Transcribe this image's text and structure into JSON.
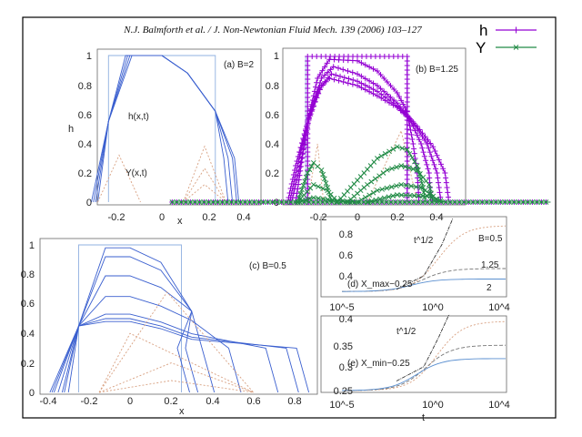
{
  "header": {
    "citation": "N.J. Balmforth et al. / J. Non-Newtonian Fluid Mech. 139 (2006) 103–127"
  },
  "legend": {
    "items": [
      {
        "label": "h",
        "color": "#9400d3",
        "marker": "+"
      },
      {
        "label": "Y",
        "color": "#228b46",
        "marker": "x"
      }
    ]
  },
  "figure": {
    "panel_a": {
      "label": "(a) B=2",
      "curve_h_label": "h(x,t)",
      "curve_y_label": "Y(x,t)",
      "ylabel": "h",
      "xlabel": "x",
      "yticks": [
        "1",
        "0.8",
        "0.6",
        "0.4",
        "0.2",
        "0"
      ],
      "xticks": [
        "-0.2",
        "0",
        "0.2",
        "0.4"
      ]
    },
    "panel_b": {
      "label": "(b) B=1.25",
      "yticks": [
        "1",
        "0.8",
        "0.6",
        "0.4",
        "0.2",
        "0"
      ],
      "xticks": [
        "-0.2",
        "0",
        "0.2",
        "0.4"
      ]
    },
    "panel_c": {
      "label": "(c) B=0.5",
      "xlabel": "x",
      "yticks": [
        "1",
        "0.8",
        "0.6",
        "0.4",
        "0.2",
        "0"
      ],
      "xticks": [
        "-0.4",
        "-0.2",
        "0",
        "0.2",
        "0.4",
        "0.6",
        "0.8"
      ]
    },
    "panel_d": {
      "label": "(d) X_max−0.25",
      "asymptote": "t^1/2",
      "series_labels": [
        "B=0.5",
        "1.25",
        "2"
      ],
      "yticks": [
        "0.8",
        "0.6",
        "0.4"
      ],
      "xticks": [
        "10^-5",
        "10^0",
        "10^4"
      ]
    },
    "panel_e": {
      "label": "(e) X_min−0.25",
      "asymptote": "t^1/2",
      "xlabel": "t",
      "yticks": [
        "0.4",
        "0.35",
        "0.3",
        "0.25"
      ],
      "xticks": [
        "10^-5",
        "10^0",
        "10^4"
      ]
    }
  },
  "chart_data": {
    "type": "line",
    "xlim": [
      -0.93,
      0.97
    ],
    "ylim": [
      0,
      1
    ],
    "legend_position": "top-right",
    "series": [
      {
        "name": "h",
        "color": "#9400d3",
        "marker": "+",
        "curves": [
          [
            [
              -0.25,
              0
            ],
            [
              -0.25,
              1
            ],
            [
              0.25,
              1
            ],
            [
              0.25,
              0
            ]
          ],
          [
            [
              -0.31,
              0
            ],
            [
              -0.25,
              0.55
            ],
            [
              -0.2,
              0.85
            ],
            [
              -0.14,
              0.98
            ],
            [
              0,
              0.97
            ],
            [
              0.1,
              0.9
            ],
            [
              0.2,
              0.75
            ],
            [
              0.25,
              0.62
            ],
            [
              0.28,
              0.4
            ],
            [
              0.3,
              0.2
            ],
            [
              0.31,
              0
            ]
          ],
          [
            [
              -0.33,
              0
            ],
            [
              -0.28,
              0.3
            ],
            [
              -0.24,
              0.6
            ],
            [
              -0.18,
              0.85
            ],
            [
              -0.12,
              0.93
            ],
            [
              0,
              0.88
            ],
            [
              0.1,
              0.8
            ],
            [
              0.2,
              0.68
            ],
            [
              0.26,
              0.58
            ],
            [
              0.32,
              0.4
            ],
            [
              0.36,
              0.2
            ],
            [
              0.37,
              0
            ]
          ],
          [
            [
              -0.34,
              0
            ],
            [
              -0.3,
              0.25
            ],
            [
              -0.25,
              0.55
            ],
            [
              -0.18,
              0.8
            ],
            [
              -0.13,
              0.88
            ],
            [
              0,
              0.83
            ],
            [
              0.1,
              0.76
            ],
            [
              0.2,
              0.66
            ],
            [
              0.28,
              0.55
            ],
            [
              0.35,
              0.4
            ],
            [
              0.4,
              0.2
            ],
            [
              0.42,
              0
            ]
          ],
          [
            [
              -0.35,
              0
            ],
            [
              -0.31,
              0.25
            ],
            [
              -0.26,
              0.5
            ],
            [
              -0.19,
              0.78
            ],
            [
              -0.14,
              0.85
            ],
            [
              0,
              0.8
            ],
            [
              0.1,
              0.73
            ],
            [
              0.2,
              0.65
            ],
            [
              0.3,
              0.52
            ],
            [
              0.38,
              0.38
            ],
            [
              0.44,
              0.2
            ],
            [
              0.46,
              0
            ]
          ],
          [
            [
              -0.93,
              0
            ],
            [
              0.97,
              0
            ]
          ]
        ]
      },
      {
        "name": "Y",
        "color": "#228b46",
        "marker": "x",
        "curves": [
          [
            [
              -0.3,
              0
            ],
            [
              -0.25,
              0.2
            ],
            [
              -0.22,
              0.27
            ],
            [
              -0.18,
              0.22
            ],
            [
              -0.15,
              0.1
            ],
            [
              -0.13,
              0
            ]
          ],
          [
            [
              -0.3,
              0
            ],
            [
              -0.22,
              0.12
            ],
            [
              -0.15,
              0.08
            ],
            [
              -0.1,
              0
            ]
          ],
          [
            [
              -0.3,
              0
            ],
            [
              -0.22,
              0.03
            ],
            [
              -0.1,
              0.01
            ],
            [
              0,
              0
            ]
          ],
          [
            [
              -0.1,
              0
            ],
            [
              0,
              0.15
            ],
            [
              0.1,
              0.3
            ],
            [
              0.2,
              0.38
            ],
            [
              0.25,
              0.36
            ],
            [
              0.3,
              0.25
            ],
            [
              0.33,
              0.1
            ],
            [
              0.34,
              0
            ]
          ],
          [
            [
              -0.05,
              0
            ],
            [
              0.05,
              0.12
            ],
            [
              0.15,
              0.22
            ],
            [
              0.22,
              0.25
            ],
            [
              0.3,
              0.22
            ],
            [
              0.36,
              0.12
            ],
            [
              0.38,
              0
            ]
          ],
          [
            [
              0,
              0
            ],
            [
              0.1,
              0.08
            ],
            [
              0.22,
              0.12
            ],
            [
              0.32,
              0.1
            ],
            [
              0.4,
              0.02
            ],
            [
              0.41,
              0
            ]
          ],
          [
            [
              0.05,
              0
            ],
            [
              0.2,
              0.05
            ],
            [
              0.35,
              0.04
            ],
            [
              0.44,
              0
            ]
          ],
          [
            [
              -0.93,
              0
            ],
            [
              0.97,
              0
            ]
          ]
        ]
      }
    ]
  }
}
